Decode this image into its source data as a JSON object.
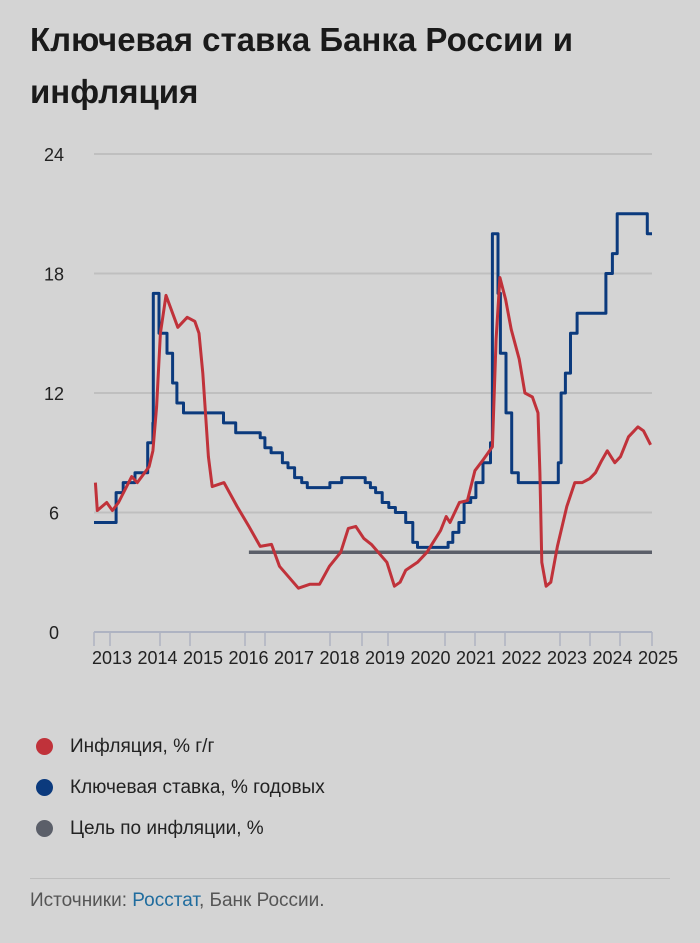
{
  "title": "Ключевая ставка Банка России и инфляция",
  "colors": {
    "inflation": "#c0323a",
    "key_rate": "#0b3a7d",
    "target": "#5b5f69",
    "grid": "#bfbfbf",
    "axis": "#aeb3c2"
  },
  "legend": [
    {
      "label": "Инфляция, % г/г",
      "color": "#c0323a"
    },
    {
      "label": "Ключевая ставка, % годовых",
      "color": "#0b3a7d"
    },
    {
      "label": "Цель по инфляции, %",
      "color": "#5b5f69"
    }
  ],
  "footer": {
    "prefix": "Источники: ",
    "link": "Росстат",
    "suffix": ", Банк России."
  },
  "chart_data": {
    "type": "line",
    "title": "Ключевая ставка Банка России и инфляция",
    "xlabel": "",
    "ylabel": "",
    "xlim": [
      2013.7,
      2025.55
    ],
    "ylim": [
      0,
      24
    ],
    "yticks": [
      0,
      6,
      12,
      18,
      24
    ],
    "xtick_labels": [
      "2013",
      "2014",
      "2015",
      "2016",
      "2017",
      "2018",
      "2019",
      "2020",
      "2021",
      "2022",
      "2023",
      "2024",
      "2025"
    ],
    "grid": true,
    "legend_position": "bottom",
    "series": [
      {
        "name": "Инфляция, % г/г",
        "kind": "line",
        "points": [
          [
            2013.73,
            7.5
          ],
          [
            2013.77,
            6.1
          ],
          [
            2013.97,
            6.5
          ],
          [
            2014.09,
            6.1
          ],
          [
            2014.22,
            6.5
          ],
          [
            2014.5,
            7.8
          ],
          [
            2014.62,
            7.5
          ],
          [
            2014.87,
            8.3
          ],
          [
            2014.95,
            9.1
          ],
          [
            2015.03,
            11.3
          ],
          [
            2015.11,
            15.0
          ],
          [
            2015.23,
            16.9
          ],
          [
            2015.48,
            15.3
          ],
          [
            2015.68,
            15.8
          ],
          [
            2015.84,
            15.6
          ],
          [
            2015.93,
            15.0
          ],
          [
            2016.01,
            13.0
          ],
          [
            2016.13,
            8.8
          ],
          [
            2016.21,
            7.3
          ],
          [
            2016.46,
            7.5
          ],
          [
            2016.74,
            6.3
          ],
          [
            2016.99,
            5.3
          ],
          [
            2017.23,
            4.3
          ],
          [
            2017.47,
            4.4
          ],
          [
            2017.64,
            3.3
          ],
          [
            2018.04,
            2.2
          ],
          [
            2018.29,
            2.4
          ],
          [
            2018.49,
            2.4
          ],
          [
            2018.7,
            3.3
          ],
          [
            2018.94,
            4.0
          ],
          [
            2019.1,
            5.2
          ],
          [
            2019.26,
            5.3
          ],
          [
            2019.43,
            4.7
          ],
          [
            2019.59,
            4.4
          ],
          [
            2019.92,
            3.5
          ],
          [
            2020.08,
            2.3
          ],
          [
            2020.2,
            2.5
          ],
          [
            2020.32,
            3.1
          ],
          [
            2020.57,
            3.5
          ],
          [
            2020.77,
            4.0
          ],
          [
            2021.06,
            5.1
          ],
          [
            2021.18,
            5.8
          ],
          [
            2021.26,
            5.5
          ],
          [
            2021.46,
            6.5
          ],
          [
            2021.63,
            6.6
          ],
          [
            2021.79,
            8.1
          ],
          [
            2021.95,
            8.6
          ],
          [
            2022.16,
            9.3
          ],
          [
            2022.24,
            14.7
          ],
          [
            2022.32,
            17.8
          ],
          [
            2022.44,
            16.7
          ],
          [
            2022.56,
            15.2
          ],
          [
            2022.73,
            13.7
          ],
          [
            2022.85,
            12.0
          ],
          [
            2023.01,
            11.8
          ],
          [
            2023.13,
            11.0
          ],
          [
            2023.17,
            8.0
          ],
          [
            2023.21,
            3.5
          ],
          [
            2023.3,
            2.3
          ],
          [
            2023.4,
            2.5
          ],
          [
            2023.54,
            4.3
          ],
          [
            2023.74,
            6.3
          ],
          [
            2023.91,
            7.5
          ],
          [
            2024.07,
            7.5
          ],
          [
            2024.23,
            7.7
          ],
          [
            2024.35,
            8.0
          ],
          [
            2024.48,
            8.6
          ],
          [
            2024.6,
            9.1
          ],
          [
            2024.76,
            8.5
          ],
          [
            2024.88,
            8.8
          ],
          [
            2025.05,
            9.8
          ],
          [
            2025.25,
            10.3
          ],
          [
            2025.37,
            10.1
          ],
          [
            2025.52,
            9.4
          ]
        ]
      },
      {
        "name": "Ключевая ставка, % годовых",
        "kind": "step",
        "points": [
          [
            2013.7,
            5.5
          ],
          [
            2014.17,
            7.0
          ],
          [
            2014.32,
            7.5
          ],
          [
            2014.57,
            8.0
          ],
          [
            2014.84,
            9.5
          ],
          [
            2014.95,
            10.5
          ],
          [
            2014.96,
            17.0
          ],
          [
            2015.08,
            15.0
          ],
          [
            2015.25,
            14.0
          ],
          [
            2015.37,
            12.5
          ],
          [
            2015.46,
            11.5
          ],
          [
            2015.6,
            11.0
          ],
          [
            2016.45,
            10.5
          ],
          [
            2016.71,
            10.0
          ],
          [
            2017.23,
            9.75
          ],
          [
            2017.33,
            9.25
          ],
          [
            2017.46,
            9.0
          ],
          [
            2017.7,
            8.5
          ],
          [
            2017.82,
            8.25
          ],
          [
            2017.96,
            7.75
          ],
          [
            2018.11,
            7.5
          ],
          [
            2018.23,
            7.25
          ],
          [
            2018.71,
            7.5
          ],
          [
            2018.96,
            7.75
          ],
          [
            2019.46,
            7.5
          ],
          [
            2019.57,
            7.25
          ],
          [
            2019.68,
            7.0
          ],
          [
            2019.82,
            6.5
          ],
          [
            2019.96,
            6.25
          ],
          [
            2020.1,
            6.0
          ],
          [
            2020.32,
            5.5
          ],
          [
            2020.47,
            4.5
          ],
          [
            2020.57,
            4.25
          ],
          [
            2021.22,
            4.5
          ],
          [
            2021.32,
            5.0
          ],
          [
            2021.45,
            5.5
          ],
          [
            2021.56,
            6.5
          ],
          [
            2021.7,
            6.75
          ],
          [
            2021.81,
            7.5
          ],
          [
            2021.96,
            8.5
          ],
          [
            2022.12,
            9.5
          ],
          [
            2022.16,
            20.0
          ],
          [
            2022.28,
            17.0
          ],
          [
            2022.33,
            14.0
          ],
          [
            2022.45,
            11.0
          ],
          [
            2022.57,
            8.0
          ],
          [
            2022.71,
            7.5
          ],
          [
            2023.56,
            8.5
          ],
          [
            2023.62,
            12.0
          ],
          [
            2023.71,
            13.0
          ],
          [
            2023.82,
            15.0
          ],
          [
            2023.96,
            16.0
          ],
          [
            2024.57,
            18.0
          ],
          [
            2024.71,
            19.0
          ],
          [
            2024.81,
            21.0
          ],
          [
            2025.45,
            20.0
          ],
          [
            2025.55,
            20.0
          ]
        ]
      },
      {
        "name": "Цель по инфляции, %",
        "kind": "line",
        "points": [
          [
            2016.99,
            4.0
          ],
          [
            2025.55,
            4.0
          ]
        ]
      }
    ]
  }
}
